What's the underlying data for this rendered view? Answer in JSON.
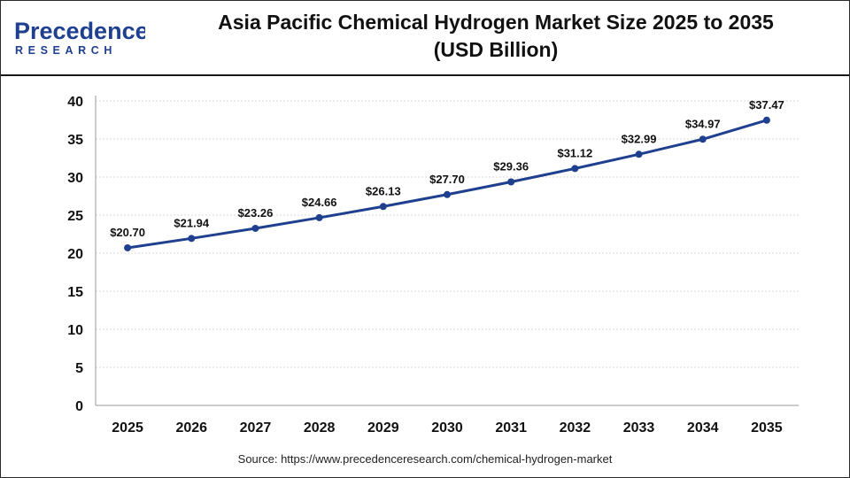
{
  "brand": {
    "name_line1": "Precedence",
    "name_line2": "RESEARCH",
    "colors": {
      "primary": "#1f3f8f",
      "accent": "#2c5fb8"
    }
  },
  "chart_data": {
    "type": "line",
    "title_line1": "Asia Pacific Chemical Hydrogen Market Size 2025 to 2035",
    "title_line2": "(USD Billion)",
    "categories": [
      "2025",
      "2026",
      "2027",
      "2028",
      "2029",
      "2030",
      "2031",
      "2032",
      "2033",
      "2034",
      "2035"
    ],
    "series": [
      {
        "values": [
          20.7,
          21.94,
          23.26,
          24.66,
          26.13,
          27.7,
          29.36,
          31.12,
          32.99,
          34.97,
          37.47
        ],
        "labels": [
          "$20.70",
          "$21.94",
          "$23.26",
          "$24.66",
          "$26.13",
          "$27.70",
          "$29.36",
          "$31.12",
          "$32.99",
          "$34.97",
          "$37.47"
        ],
        "color": "#1f3f8f"
      }
    ],
    "ylim": [
      0,
      40
    ],
    "yticks": [
      "0",
      "5",
      "10",
      "15",
      "20",
      "25",
      "30",
      "35",
      "40"
    ],
    "grid": true,
    "xlabel": "",
    "ylabel": ""
  },
  "source": "Source: https://www.precedenceresearch.com/chemical-hydrogen-market"
}
